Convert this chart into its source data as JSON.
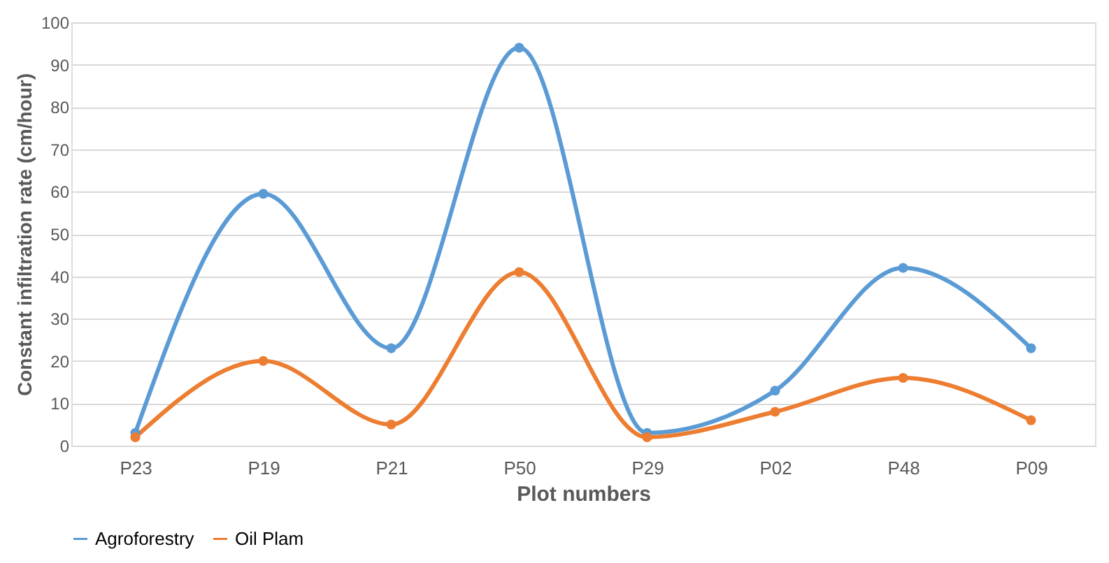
{
  "chart_data": {
    "type": "line",
    "xlabel": "Plot numbers",
    "ylabel": "Constant infiltration rate (cm/hour)",
    "categories": [
      "P23",
      "P19",
      "P21",
      "P50",
      "P29",
      "P02",
      "P48",
      "P09"
    ],
    "series": [
      {
        "name": "Agroforestry",
        "color": "#5b9bd5",
        "values": [
          3,
          59.5,
          23,
          94,
          3,
          13,
          42,
          23
        ]
      },
      {
        "name": "Oil Plam",
        "color": "#ed7d31",
        "values": [
          2,
          20,
          5,
          41,
          2,
          8,
          16,
          6
        ]
      }
    ],
    "ylim": [
      0,
      100
    ],
    "yticks": [
      0,
      10,
      20,
      30,
      40,
      50,
      60,
      70,
      80,
      90,
      100
    ],
    "grid": "y",
    "legend": "bottom",
    "marker": "circle",
    "line_style": "solid"
  }
}
